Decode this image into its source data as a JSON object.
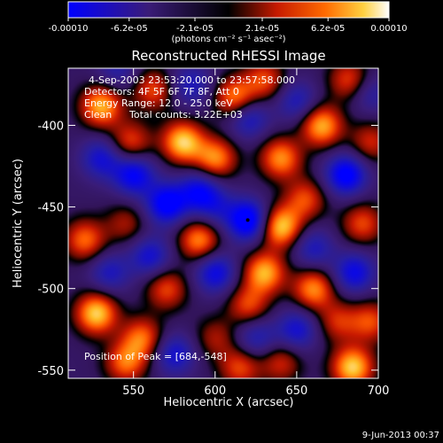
{
  "chart_data": {
    "type": "heatmap",
    "title": "Reconstructed RHESSI Image",
    "xlabel": "Heliocentric X (arcsec)",
    "ylabel": "Heliocentric Y (arcsec)",
    "xlim": [
      510,
      700
    ],
    "ylim": [
      -555,
      -365
    ],
    "x_ticks": [
      550,
      600,
      650,
      700
    ],
    "y_ticks": [
      -550,
      -500,
      -450,
      -400
    ],
    "colorbar": {
      "range": [
        -0.0001,
        0.0001
      ],
      "tick_values": [
        -0.0001,
        -6.2e-05,
        -2.1e-05,
        2.1e-05,
        6.2e-05,
        0.0001
      ],
      "tick_labels": [
        "-0.00010",
        "-6.2e-05",
        "-2.1e-05",
        "2.1e-05",
        "6.2e-05",
        "0.00010"
      ],
      "units": "(photons cm⁻² s⁻¹ asec⁻²)"
    },
    "annotations": [
      "4-Sep-2003 23:53:20.000 to 23:57:58.000",
      "Detectors: 4F 5F 6F 7F 8F, Att 0",
      "Energy Range: 12.0 - 25.0 keV",
      "Clean",
      "Total counts: 3.22E+03",
      "Position of Peak = [684,-548]"
    ],
    "peak": {
      "x": 684,
      "y": -548
    },
    "timestamp": "9-Jun-2013 00:37",
    "features": [
      {
        "x": 530,
        "y": -388,
        "v": 0.9
      },
      {
        "x": 520,
        "y": -470,
        "v": 0.7
      },
      {
        "x": 527,
        "y": -515,
        "v": 1.0
      },
      {
        "x": 545,
        "y": -545,
        "v": 0.7
      },
      {
        "x": 548,
        "y": -410,
        "v": 0.6
      },
      {
        "x": 562,
        "y": -378,
        "v": 0.6
      },
      {
        "x": 580,
        "y": -410,
        "v": 1.0
      },
      {
        "x": 590,
        "y": -470,
        "v": 0.8
      },
      {
        "x": 600,
        "y": -420,
        "v": 0.8
      },
      {
        "x": 612,
        "y": -383,
        "v": 0.8
      },
      {
        "x": 630,
        "y": -372,
        "v": 0.6
      },
      {
        "x": 640,
        "y": -420,
        "v": 0.8
      },
      {
        "x": 665,
        "y": -400,
        "v": 0.9
      },
      {
        "x": 682,
        "y": -372,
        "v": 0.6
      },
      {
        "x": 695,
        "y": -410,
        "v": 0.5
      },
      {
        "x": 655,
        "y": -445,
        "v": 0.6
      },
      {
        "x": 640,
        "y": -462,
        "v": 1.0
      },
      {
        "x": 690,
        "y": -460,
        "v": 0.6
      },
      {
        "x": 660,
        "y": -500,
        "v": 0.8
      },
      {
        "x": 630,
        "y": -490,
        "v": 0.9
      },
      {
        "x": 620,
        "y": -510,
        "v": 0.6
      },
      {
        "x": 570,
        "y": -500,
        "v": 0.6
      },
      {
        "x": 555,
        "y": -530,
        "v": 0.7
      },
      {
        "x": 615,
        "y": -548,
        "v": 0.6
      },
      {
        "x": 640,
        "y": -545,
        "v": 0.5
      },
      {
        "x": 684,
        "y": -548,
        "v": 1.0
      },
      {
        "x": 695,
        "y": -520,
        "v": 0.6
      },
      {
        "x": 675,
        "y": -520,
        "v": 0.5
      },
      {
        "x": 545,
        "y": -460,
        "v": 0.4
      },
      {
        "x": 600,
        "y": -530,
        "v": 0.4
      },
      {
        "x": 620,
        "y": -458,
        "v": -1.0
      },
      {
        "x": 570,
        "y": -448,
        "v": -0.9
      },
      {
        "x": 550,
        "y": -430,
        "v": -0.8
      },
      {
        "x": 590,
        "y": -440,
        "v": -0.7
      },
      {
        "x": 600,
        "y": -490,
        "v": -0.7
      },
      {
        "x": 560,
        "y": -480,
        "v": -0.6
      },
      {
        "x": 530,
        "y": -420,
        "v": -0.6
      },
      {
        "x": 535,
        "y": -490,
        "v": -0.5
      },
      {
        "x": 680,
        "y": -430,
        "v": -0.9
      },
      {
        "x": 660,
        "y": -475,
        "v": -0.5
      },
      {
        "x": 685,
        "y": -490,
        "v": -0.7
      },
      {
        "x": 650,
        "y": -525,
        "v": -0.6
      },
      {
        "x": 575,
        "y": -540,
        "v": -0.6
      },
      {
        "x": 625,
        "y": -530,
        "v": -0.5
      },
      {
        "x": 620,
        "y": -395,
        "v": -0.6
      },
      {
        "x": 585,
        "y": -375,
        "v": -0.5
      },
      {
        "x": 650,
        "y": -385,
        "v": -0.5
      },
      {
        "x": 540,
        "y": -365,
        "v": -0.4
      },
      {
        "x": 695,
        "y": -380,
        "v": -0.4
      },
      {
        "x": 600,
        "y": -450,
        "v": -0.4
      }
    ]
  }
}
